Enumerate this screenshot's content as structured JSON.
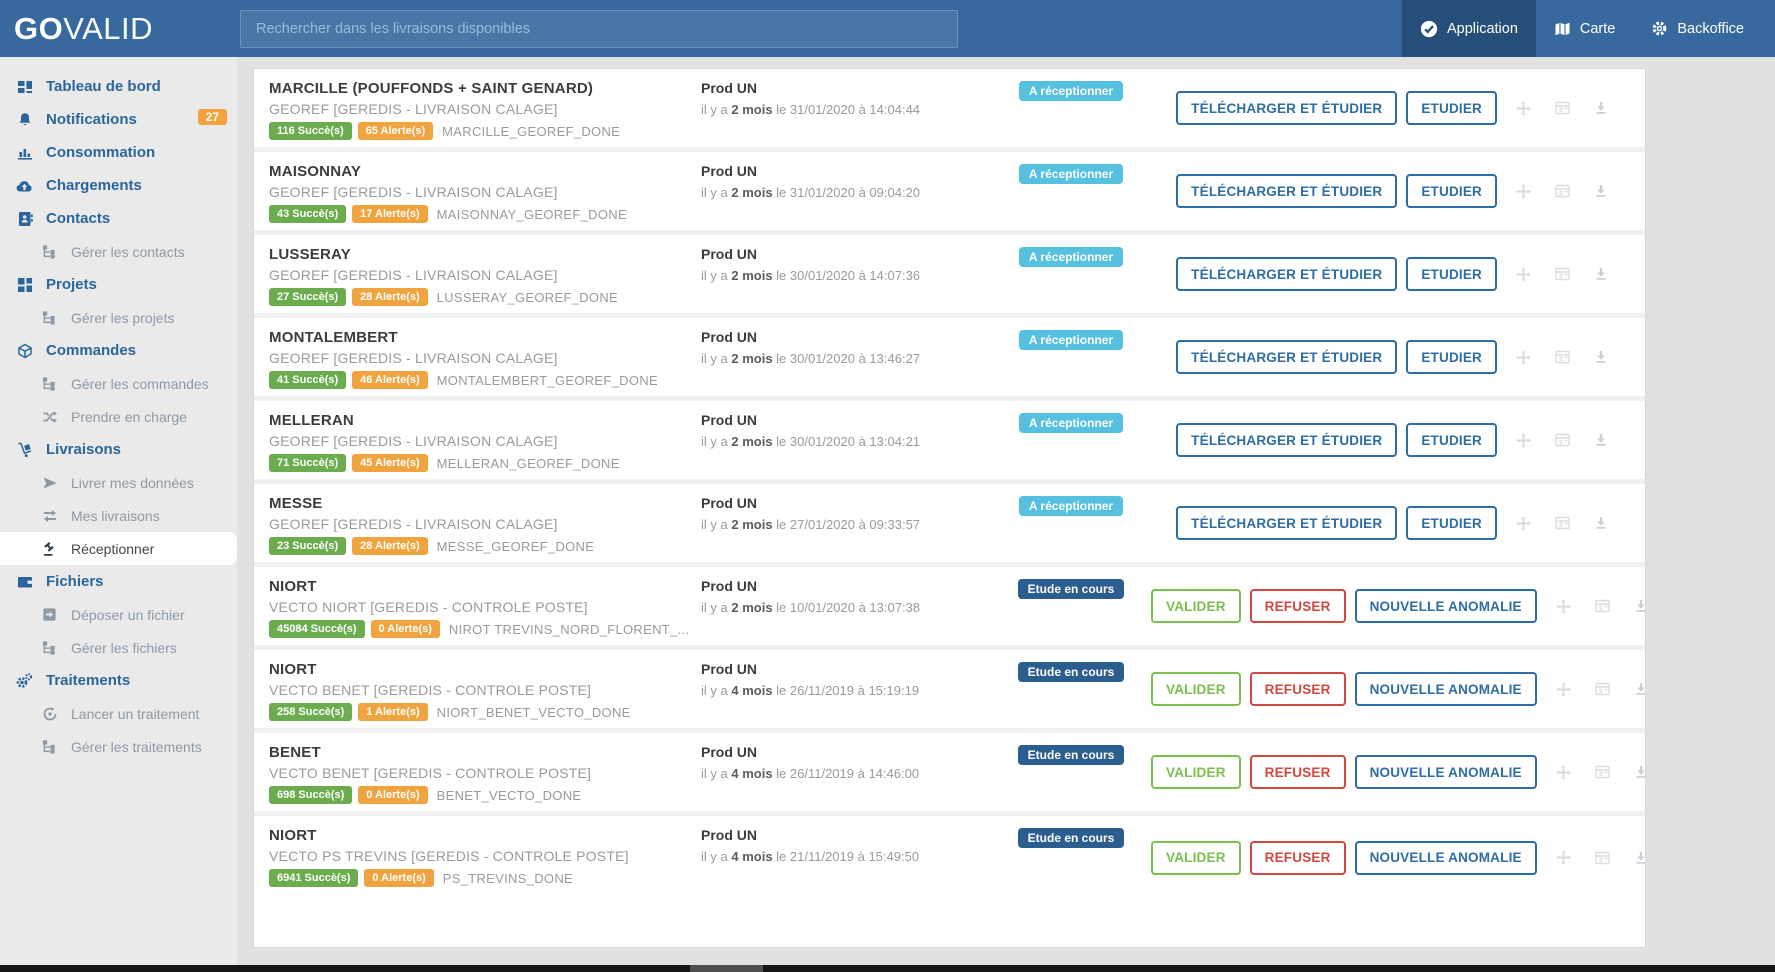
{
  "logo": {
    "bold": "GO",
    "light": "VALID"
  },
  "search": {
    "placeholder": "Rechercher dans les livraisons disponibles"
  },
  "topnav": [
    {
      "label": "Application",
      "icon": "check-circle-icon",
      "active": true
    },
    {
      "label": "Carte",
      "icon": "map-icon",
      "active": false
    },
    {
      "label": "Backoffice",
      "icon": "gear-icon",
      "active": false
    }
  ],
  "sidebar": [
    {
      "label": "Tableau de bord",
      "icon": "dashboard-icon",
      "level": "main"
    },
    {
      "label": "Notifications",
      "icon": "bell-icon",
      "level": "main",
      "badge": "27"
    },
    {
      "label": "Consommation",
      "icon": "bar-chart-icon",
      "level": "main"
    },
    {
      "label": "Chargements",
      "icon": "cloud-upload-icon",
      "level": "main"
    },
    {
      "label": "Contacts",
      "icon": "address-book-icon",
      "level": "main"
    },
    {
      "label": "Gérer les contacts",
      "icon": "tree-icon",
      "level": "sub"
    },
    {
      "label": "Projets",
      "icon": "grid-icon",
      "level": "main"
    },
    {
      "label": "Gérer les projets",
      "icon": "tree-icon",
      "level": "sub"
    },
    {
      "label": "Commandes",
      "icon": "cube-icon",
      "level": "main"
    },
    {
      "label": "Gérer les commandes",
      "icon": "tree-icon",
      "level": "sub"
    },
    {
      "label": "Prendre en charge",
      "icon": "random-icon",
      "level": "sub"
    },
    {
      "label": "Livraisons",
      "icon": "dolly-icon",
      "level": "main"
    },
    {
      "label": "Livrer mes données",
      "icon": "send-icon",
      "level": "sub"
    },
    {
      "label": "Mes livraisons",
      "icon": "exchange-icon",
      "level": "sub"
    },
    {
      "label": "Réceptionner",
      "icon": "gavel-icon",
      "level": "sub",
      "active": true
    },
    {
      "label": "Fichiers",
      "icon": "wallet-icon",
      "level": "main"
    },
    {
      "label": "Déposer un fichier",
      "icon": "box-icon",
      "level": "sub"
    },
    {
      "label": "Gérer les fichiers",
      "icon": "tree-icon",
      "level": "sub"
    },
    {
      "label": "Traitements",
      "icon": "gears-icon",
      "level": "main"
    },
    {
      "label": "Lancer un traitement",
      "icon": "play-circle-icon",
      "level": "sub"
    },
    {
      "label": "Gérer les traitements",
      "icon": "tree-icon",
      "level": "sub"
    }
  ],
  "row_icons": [
    "move-icon",
    "card-icon",
    "download-icon"
  ],
  "rows": [
    {
      "title": "MARCILLE (POUFFONDS + SAINT GENARD)",
      "subtitle": "GEOREF [GEREDIS - LIVRAISON CALAGE]",
      "success_badge": "116 Succè(s)",
      "alert_badge": "65 Alerte(s)",
      "file": "MARCILLE_GEOREF_DONE",
      "env": "Prod UN",
      "ago_prefix": "il y a",
      "ago": "2 mois",
      "date": "le 31/01/2020 à 14:04:44",
      "status": "A réceptionner",
      "status_style": "info",
      "actions": [
        {
          "label": "TÉLÉCHARGER ET ÉTUDIER",
          "style": "primary"
        },
        {
          "label": "ETUDIER",
          "style": "primary"
        }
      ]
    },
    {
      "title": "MAISONNAY",
      "subtitle": "GEOREF [GEREDIS - LIVRAISON CALAGE]",
      "success_badge": "43 Succè(s)",
      "alert_badge": "17 Alerte(s)",
      "file": "MAISONNAY_GEOREF_DONE",
      "env": "Prod UN",
      "ago_prefix": "il y a",
      "ago": "2 mois",
      "date": "le 31/01/2020 à 09:04:20",
      "status": "A réceptionner",
      "status_style": "info",
      "actions": [
        {
          "label": "TÉLÉCHARGER ET ÉTUDIER",
          "style": "primary"
        },
        {
          "label": "ETUDIER",
          "style": "primary"
        }
      ]
    },
    {
      "title": "LUSSERAY",
      "subtitle": "GEOREF [GEREDIS - LIVRAISON CALAGE]",
      "success_badge": "27 Succè(s)",
      "alert_badge": "28 Alerte(s)",
      "file": "LUSSERAY_GEOREF_DONE",
      "env": "Prod UN",
      "ago_prefix": "il y a",
      "ago": "2 mois",
      "date": "le 30/01/2020 à 14:07:36",
      "status": "A réceptionner",
      "status_style": "info",
      "actions": [
        {
          "label": "TÉLÉCHARGER ET ÉTUDIER",
          "style": "primary"
        },
        {
          "label": "ETUDIER",
          "style": "primary"
        }
      ]
    },
    {
      "title": "MONTALEMBERT",
      "subtitle": "GEOREF [GEREDIS - LIVRAISON CALAGE]",
      "success_badge": "41 Succè(s)",
      "alert_badge": "46 Alerte(s)",
      "file": "MONTALEMBERT_GEOREF_DONE",
      "env": "Prod UN",
      "ago_prefix": "il y a",
      "ago": "2 mois",
      "date": "le 30/01/2020 à 13:46:27",
      "status": "A réceptionner",
      "status_style": "info",
      "actions": [
        {
          "label": "TÉLÉCHARGER ET ÉTUDIER",
          "style": "primary"
        },
        {
          "label": "ETUDIER",
          "style": "primary"
        }
      ]
    },
    {
      "title": "MELLERAN",
      "subtitle": "GEOREF [GEREDIS - LIVRAISON CALAGE]",
      "success_badge": "71 Succè(s)",
      "alert_badge": "45 Alerte(s)",
      "file": "MELLERAN_GEOREF_DONE",
      "env": "Prod UN",
      "ago_prefix": "il y a",
      "ago": "2 mois",
      "date": "le 30/01/2020 à 13:04:21",
      "status": "A réceptionner",
      "status_style": "info",
      "actions": [
        {
          "label": "TÉLÉCHARGER ET ÉTUDIER",
          "style": "primary"
        },
        {
          "label": "ETUDIER",
          "style": "primary"
        }
      ]
    },
    {
      "title": "MESSE",
      "subtitle": "GEOREF [GEREDIS - LIVRAISON CALAGE]",
      "success_badge": "23 Succè(s)",
      "alert_badge": "28 Alerte(s)",
      "file": "MESSE_GEOREF_DONE",
      "env": "Prod UN",
      "ago_prefix": "il y a",
      "ago": "2 mois",
      "date": "le 27/01/2020 à 09:33:57",
      "status": "A réceptionner",
      "status_style": "info",
      "actions": [
        {
          "label": "TÉLÉCHARGER ET ÉTUDIER",
          "style": "primary"
        },
        {
          "label": "ETUDIER",
          "style": "primary"
        }
      ]
    },
    {
      "title": "NIORT",
      "subtitle": "VECTO NIORT [GEREDIS - CONTROLE POSTE]",
      "success_badge": "45084 Succè(s)",
      "alert_badge": "0 Alerte(s)",
      "file": "NIROT TREVINS_NORD_FLORENT_...",
      "env": "Prod UN",
      "ago_prefix": "il y a",
      "ago": "2 mois",
      "date": "le 10/01/2020 à 13:07:38",
      "status": "Etude en cours",
      "status_style": "dark",
      "actions": [
        {
          "label": "VALIDER",
          "style": "success"
        },
        {
          "label": "REFUSER",
          "style": "danger"
        },
        {
          "label": "NOUVELLE ANOMALIE",
          "style": "primary"
        }
      ]
    },
    {
      "title": "NIORT",
      "subtitle": "VECTO BENET [GEREDIS - CONTROLE POSTE]",
      "success_badge": "258 Succè(s)",
      "alert_badge": "1 Alerte(s)",
      "file": "NIORT_BENET_VECTO_DONE",
      "env": "Prod UN",
      "ago_prefix": "il y a",
      "ago": "4 mois",
      "date": "le 26/11/2019 à 15:19:19",
      "status": "Etude en cours",
      "status_style": "dark",
      "actions": [
        {
          "label": "VALIDER",
          "style": "success"
        },
        {
          "label": "REFUSER",
          "style": "danger"
        },
        {
          "label": "NOUVELLE ANOMALIE",
          "style": "primary"
        }
      ]
    },
    {
      "title": "BENET",
      "subtitle": "VECTO BENET [GEREDIS - CONTROLE POSTE]",
      "success_badge": "698 Succè(s)",
      "alert_badge": "0 Alerte(s)",
      "file": "BENET_VECTO_DONE",
      "env": "Prod UN",
      "ago_prefix": "il y a",
      "ago": "4 mois",
      "date": "le 26/11/2019 à 14:46:00",
      "status": "Etude en cours",
      "status_style": "dark",
      "actions": [
        {
          "label": "VALIDER",
          "style": "success"
        },
        {
          "label": "REFUSER",
          "style": "danger"
        },
        {
          "label": "NOUVELLE ANOMALIE",
          "style": "primary"
        }
      ]
    },
    {
      "title": "NIORT",
      "subtitle": "VECTO PS TREVINS [GEREDIS - CONTROLE POSTE]",
      "success_badge": "6941 Succè(s)",
      "alert_badge": "0 Alerte(s)",
      "file": "PS_TREVINS_DONE",
      "env": "Prod UN",
      "ago_prefix": "il y a",
      "ago": "4 mois",
      "date": "le 21/11/2019 à 15:49:50",
      "status": "Etude en cours",
      "status_style": "dark",
      "actions": [
        {
          "label": "VALIDER",
          "style": "success"
        },
        {
          "label": "REFUSER",
          "style": "danger"
        },
        {
          "label": "NOUVELLE ANOMALIE",
          "style": "primary"
        }
      ]
    }
  ],
  "colors": {
    "navbar": "#38699e",
    "navbar_active": "#254f78",
    "sidebar_main": "#2a669c",
    "sidebar_sub": "#8c9aa8",
    "badge_success": "#6bad4e",
    "badge_alert": "#f0a43f",
    "status_info": "#56c0e0",
    "status_dark": "#2c5d8f",
    "btn_primary": "#2e6da4",
    "btn_success": "#7bbf4e",
    "btn_danger": "#d0473f",
    "notif_badge": "#f2a33c"
  }
}
